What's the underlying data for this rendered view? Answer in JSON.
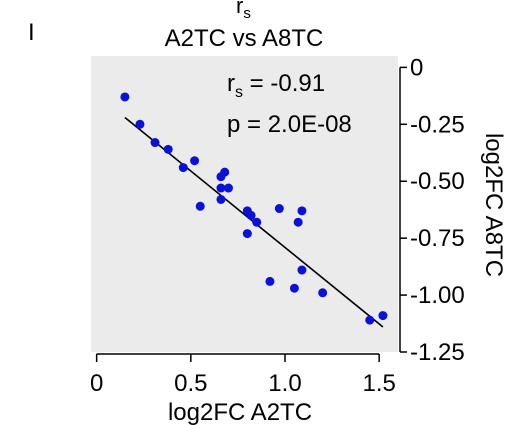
{
  "chart_data": {
    "type": "scatter",
    "panel_marker": "I",
    "title_line1": "r",
    "title_line1_sub": "s",
    "title_line2": "A2TC vs A8TC",
    "xlabel": "log2FC A2TC",
    "ylabel": "log2FC A8TC",
    "xlim": [
      -0.03,
      1.6
    ],
    "ylim": [
      -1.25,
      0.05
    ],
    "xticks": [
      0,
      0.5,
      1.0,
      1.5
    ],
    "xtick_labels": [
      "0",
      "0.5",
      "1.0",
      "1.5"
    ],
    "yticks": [
      0,
      -0.25,
      -0.5,
      -0.75,
      -1.0,
      -1.25
    ],
    "ytick_labels": [
      "0",
      "-0.25",
      "-0.50",
      "-0.75",
      "-1.00",
      "-1.25"
    ],
    "grid": false,
    "background_color": "#ebebeb",
    "point_color": "#0a12d8",
    "annotations": [
      {
        "prefix": "r",
        "sub": "s",
        "text": " = -0.91"
      },
      {
        "prefix": "",
        "sub": "",
        "text": "p = 2.0E-08"
      }
    ],
    "regression_line": {
      "x": [
        0.15,
        1.52
      ],
      "y": [
        -0.22,
        -1.14
      ]
    },
    "points": [
      {
        "x": 0.15,
        "y": -0.13
      },
      {
        "x": 0.23,
        "y": -0.25
      },
      {
        "x": 0.31,
        "y": -0.33
      },
      {
        "x": 0.38,
        "y": -0.36
      },
      {
        "x": 0.46,
        "y": -0.44
      },
      {
        "x": 0.52,
        "y": -0.41
      },
      {
        "x": 0.55,
        "y": -0.61
      },
      {
        "x": 0.66,
        "y": -0.48
      },
      {
        "x": 0.68,
        "y": -0.46
      },
      {
        "x": 0.66,
        "y": -0.53
      },
      {
        "x": 0.7,
        "y": -0.53
      },
      {
        "x": 0.66,
        "y": -0.58
      },
      {
        "x": 0.8,
        "y": -0.63
      },
      {
        "x": 0.82,
        "y": -0.65
      },
      {
        "x": 0.85,
        "y": -0.68
      },
      {
        "x": 0.8,
        "y": -0.73
      },
      {
        "x": 0.97,
        "y": -0.62
      },
      {
        "x": 1.09,
        "y": -0.63
      },
      {
        "x": 1.07,
        "y": -0.68
      },
      {
        "x": 1.09,
        "y": -0.89
      },
      {
        "x": 0.92,
        "y": -0.94
      },
      {
        "x": 1.05,
        "y": -0.97
      },
      {
        "x": 1.2,
        "y": -0.99
      },
      {
        "x": 1.45,
        "y": -1.11
      },
      {
        "x": 1.52,
        "y": -1.09
      }
    ]
  }
}
